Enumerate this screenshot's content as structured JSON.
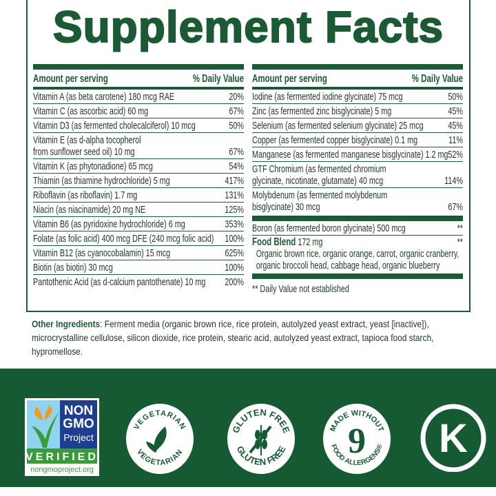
{
  "title": "Supplement Facts",
  "header": {
    "amount": "Amount per serving",
    "dv": "% Daily Value"
  },
  "left_rows": [
    {
      "name": "Vitamin A (as beta carotene) 180 mcg RAE",
      "dv": "20%"
    },
    {
      "name": "Vitamin C (as ascorbic acid) 60 mg",
      "dv": "67%"
    },
    {
      "name": "Vitamin D3 (as fermented cholecalciferol) 10 mcg",
      "dv": "50%"
    },
    {
      "name": "Vitamin E (as d-alpha tocopherol\nfrom sunflower seed oil) 10 mg",
      "dv": "67%"
    },
    {
      "name": "Vitamin K (as phytonadione) 65 mcg",
      "dv": "54%"
    },
    {
      "name": "Thiamin (as thiamine hydrochloride) 5 mg",
      "dv": "417%"
    },
    {
      "name": "Riboflavin (as riboflavin) 1.7 mg",
      "dv": "131%"
    },
    {
      "name": "Niacin (as niacinamide) 20 mg NE",
      "dv": "125%"
    },
    {
      "name": "Vitamin B6 (as pyridoxine hydrochloride) 6 mg",
      "dv": "353%"
    },
    {
      "name": "Folate (as folic acid) 400 mcg DFE (240 mcg folic acid)",
      "dv": "100%"
    },
    {
      "name": "Vitamin B12 (as cyanocobalamin) 15 mcg",
      "dv": "625%"
    },
    {
      "name": "Biotin (as biotin) 30 mcg",
      "dv": "100%"
    },
    {
      "name": "Pantothenic Acid (as d-calcium pantothenate) 10 mg",
      "dv": "200%"
    }
  ],
  "right_rows": [
    {
      "name": "Iodine (as fermented iodine glycinate) 75 mcg",
      "dv": "50%"
    },
    {
      "name": "Zinc (as fermented zinc bisglycinate) 5 mg",
      "dv": "45%"
    },
    {
      "name": "Selenium (as fermented selenium glycinate) 25 mcg",
      "dv": "45%"
    },
    {
      "name": "Copper (as fermented copper bisglycinate) 0.1 mg",
      "dv": "11%"
    },
    {
      "name": "Manganese (as fermented manganese bisglycinate) 1.2 mg",
      "dv": "52%"
    },
    {
      "name": "GTF Chromium (as fermented chromium\nglycinate, nicotinate, glutamate) 40 mcg",
      "dv": "114%"
    },
    {
      "name": "Molybdenum (as fermented molybdenum\nbisglycinate) 30 mcg",
      "dv": "67%"
    }
  ],
  "boron": {
    "name": "Boron (as fermented boron glycinate) 500 mcg",
    "dv": "**"
  },
  "food_blend": {
    "label": "Food Blend",
    "amount": " 172 mg",
    "dv": "**",
    "desc": "Organic brown rice, organic orange, carrot, organic cranberry, organic broccoli head, cabbage head, organic blueberry"
  },
  "footnote": "** Daily Value not established",
  "other": {
    "label": "Other Ingredients",
    "text": ": Ferment media (organic brown rice, rice protein, autolyzed yeast extract, yeast [inactive]), microcrystalline cellulose, silicon dioxide, rice protein, stearic acid, autolyzed yeast extract, tapioca food starch, hypromellose."
  },
  "badges": {
    "nongmo": {
      "line1": "NON",
      "line2": "GMO",
      "line3": "Project",
      "verified": "VERIFIED",
      "url": "nongmoproject.org"
    },
    "vegetarian": {
      "top": "VEGETARIAN",
      "bottom": "VEGETARIAN"
    },
    "gluten": {
      "top": "GLUTEN FREE",
      "bottom": "GLUTEN FREE"
    },
    "allergens": {
      "top": "MADE WITHOUT",
      "number": "9",
      "bottom": "FOOD ALLERGENS®"
    },
    "kosher": {
      "letter": "K"
    }
  },
  "colors": {
    "brand_green": "#1b5a34",
    "band_green": "#165a34",
    "nongmo_blue": "#1e3f8f",
    "nongmo_green": "#3a9b3a"
  }
}
